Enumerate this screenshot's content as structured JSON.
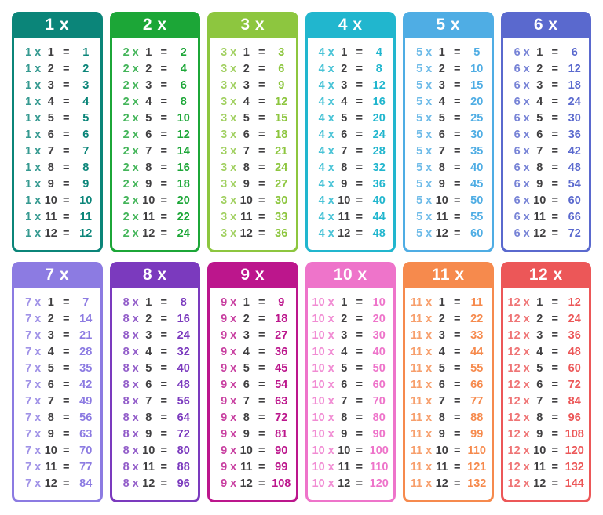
{
  "page": {
    "background": "#FFFFFF",
    "dark_text_color": "#414042",
    "header_text_color": "#FFFFFF"
  },
  "symbols": {
    "times": "x",
    "equals": "="
  },
  "chart_data": {
    "type": "table",
    "title": "Multiplication tables 1x to 12x",
    "layout": {
      "rows": 2,
      "columns": 6,
      "legend_position": "none",
      "grid": false
    },
    "multiplicands": [
      1,
      2,
      3,
      4,
      5,
      6,
      7,
      8,
      9,
      10,
      11,
      12
    ],
    "tables": [
      {
        "label": "1 x",
        "multiplier": 1,
        "color": "#0B8579",
        "products": [
          1,
          2,
          3,
          4,
          5,
          6,
          7,
          8,
          9,
          10,
          11,
          12
        ]
      },
      {
        "label": "2 x",
        "multiplier": 2,
        "color": "#1CA637",
        "products": [
          2,
          4,
          6,
          8,
          10,
          12,
          14,
          16,
          18,
          20,
          22,
          24
        ]
      },
      {
        "label": "3 x",
        "multiplier": 3,
        "color": "#8DC63F",
        "products": [
          3,
          6,
          9,
          12,
          15,
          18,
          21,
          24,
          27,
          30,
          33,
          36
        ]
      },
      {
        "label": "4 x",
        "multiplier": 4,
        "color": "#21B6CE",
        "products": [
          4,
          8,
          12,
          16,
          20,
          24,
          28,
          32,
          36,
          40,
          44,
          48
        ]
      },
      {
        "label": "5 x",
        "multiplier": 5,
        "color": "#4FADE4",
        "products": [
          5,
          10,
          15,
          20,
          25,
          30,
          35,
          40,
          45,
          50,
          55,
          60
        ]
      },
      {
        "label": "6 x",
        "multiplier": 6,
        "color": "#5A69CE",
        "products": [
          6,
          12,
          18,
          24,
          30,
          36,
          42,
          48,
          54,
          60,
          66,
          72
        ]
      },
      {
        "label": "7 x",
        "multiplier": 7,
        "color": "#8C7BE2",
        "products": [
          7,
          14,
          21,
          28,
          35,
          42,
          49,
          56,
          63,
          70,
          77,
          84
        ]
      },
      {
        "label": "8 x",
        "multiplier": 8,
        "color": "#7B3ABE",
        "products": [
          8,
          16,
          24,
          32,
          40,
          48,
          56,
          64,
          72,
          80,
          88,
          96
        ]
      },
      {
        "label": "9 x",
        "multiplier": 9,
        "color": "#BC168C",
        "products": [
          9,
          18,
          27,
          36,
          45,
          54,
          63,
          72,
          81,
          90,
          99,
          108
        ]
      },
      {
        "label": "10 x",
        "multiplier": 10,
        "color": "#EE74CA",
        "products": [
          10,
          20,
          30,
          40,
          50,
          60,
          70,
          80,
          90,
          100,
          110,
          120
        ]
      },
      {
        "label": "11 x",
        "multiplier": 11,
        "color": "#F68A4D",
        "products": [
          11,
          22,
          33,
          44,
          55,
          66,
          77,
          88,
          99,
          110,
          121,
          132
        ]
      },
      {
        "label": "12 x",
        "multiplier": 12,
        "color": "#EC5758",
        "products": [
          12,
          24,
          36,
          48,
          60,
          72,
          84,
          96,
          108,
          120,
          132,
          144
        ]
      }
    ]
  }
}
